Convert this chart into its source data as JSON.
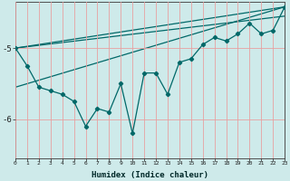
{
  "xlabel": "Humidex (Indice chaleur)",
  "background_color": "#ceeaea",
  "grid_color": "#e8a0a0",
  "line_color": "#006868",
  "x_data": [
    0,
    1,
    2,
    3,
    4,
    5,
    6,
    7,
    8,
    9,
    10,
    11,
    12,
    13,
    14,
    15,
    16,
    17,
    18,
    19,
    20,
    21,
    22,
    23
  ],
  "y_data": [
    -5.0,
    -5.25,
    -5.55,
    -5.6,
    -5.65,
    -5.75,
    -6.1,
    -5.85,
    -5.9,
    -5.5,
    -6.2,
    -5.35,
    -5.35,
    -5.65,
    -5.2,
    -5.15,
    -4.95,
    -4.85,
    -4.9,
    -4.8,
    -4.65,
    -4.8,
    -4.75,
    -4.42
  ],
  "trend_lines": [
    {
      "x": [
        0,
        23
      ],
      "y": [
        -5.0,
        -4.42
      ]
    },
    {
      "x": [
        0,
        23
      ],
      "y": [
        -5.0,
        -4.55
      ]
    },
    {
      "x": [
        0,
        23
      ],
      "y": [
        -5.55,
        -4.42
      ]
    }
  ],
  "xlim": [
    0,
    23
  ],
  "ylim": [
    -6.55,
    -4.35
  ],
  "yticks": [
    -6,
    -5
  ],
  "xticks": [
    0,
    1,
    2,
    3,
    4,
    5,
    6,
    7,
    8,
    9,
    10,
    11,
    12,
    13,
    14,
    15,
    16,
    17,
    18,
    19,
    20,
    21,
    22,
    23
  ]
}
